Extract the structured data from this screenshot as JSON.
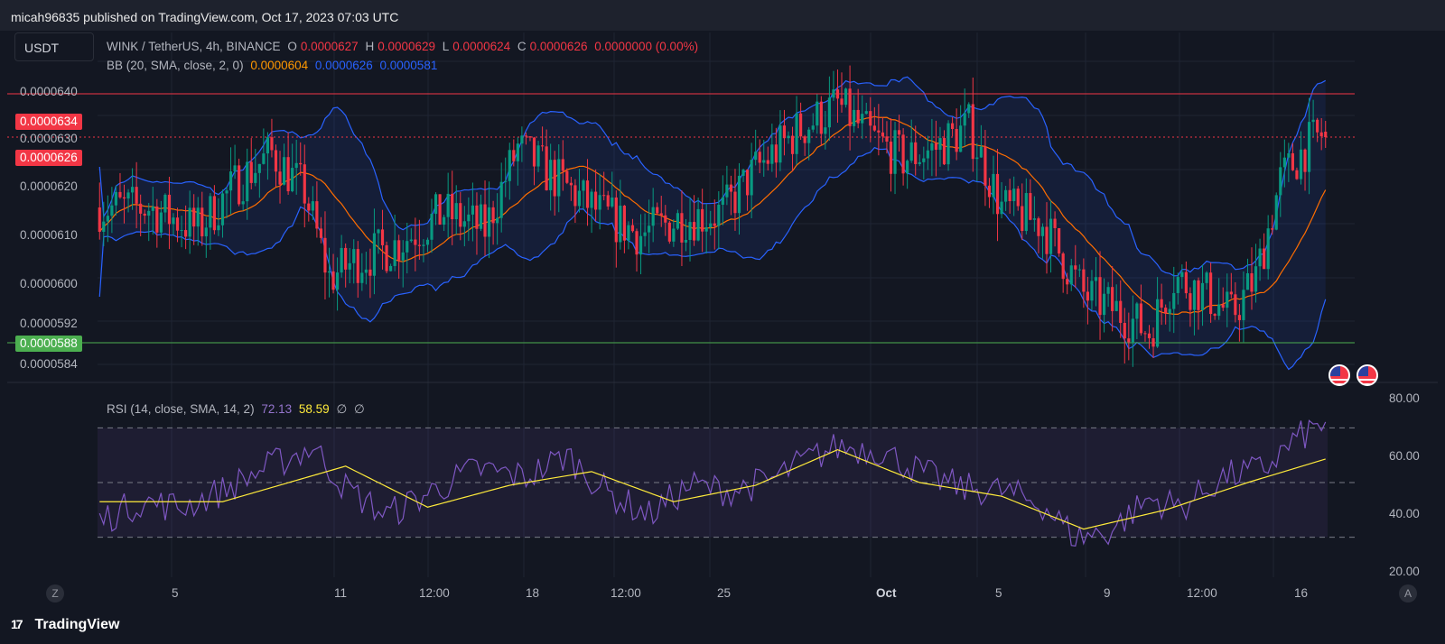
{
  "header": {
    "published": "micah96835 published on TradingView.com, Oct 17, 2023 07:03 UTC"
  },
  "symbol_box": {
    "label": "USDT"
  },
  "legend": {
    "pair": "WINK / TetherUS, 4h, BINANCE",
    "open_label": "O",
    "open": "0.0000627",
    "high_label": "H",
    "high": "0.0000629",
    "low_label": "L",
    "low": "0.0000624",
    "close_label": "C",
    "close": "0.0000626",
    "change": "0.0000000 (0.00%)",
    "bb_label": "BB (20, SMA, close, 2, 0)",
    "bb_basis": "0.0000604",
    "bb_upper": "0.0000626",
    "bb_lower": "0.0000581",
    "rsi_label": "RSI (14, close, SMA, 14, 2)",
    "rsi_value": "72.13",
    "rsi_ma": "58.59",
    "rsi_na1": "∅",
    "rsi_na2": "∅"
  },
  "price_axis": [
    "0.0000640",
    "0.0000630",
    "0.0000620",
    "0.0000610",
    "0.0000600",
    "0.0000592",
    "0.0000584"
  ],
  "price_tags": {
    "resistance": "0.0000634",
    "last": "0.0000626",
    "support": "0.0000588"
  },
  "rsi_axis": [
    "80.00",
    "60.00",
    "40.00",
    "20.00"
  ],
  "time_axis": [
    "5",
    "11",
    "12:00",
    "18",
    "12:00",
    "25",
    "Oct",
    "5",
    "9",
    "12:00",
    "16"
  ],
  "bottom": {
    "brand": "TradingView",
    "goto_label": "Z",
    "auto_label": "A"
  },
  "colors": {
    "background": "#131722",
    "up_candle": "#089981",
    "down_candle": "#f23645",
    "bb_basis": "#ff6d00",
    "bb_band": "#2962ff",
    "resistance_line": "#f23645",
    "support_line": "#4caf50",
    "rsi_line": "#7e57c2",
    "rsi_ma_line": "#ffeb3b"
  },
  "chart_data": {
    "type": "candlestick",
    "symbol": "WINK / TetherUS",
    "interval": "4h",
    "exchange": "BINANCE",
    "price_range": [
      5.8e-05,
      6.45e-05
    ],
    "horizontal_levels": [
      {
        "price": 6.34e-05,
        "color": "#f23645"
      },
      {
        "price": 5.88e-05,
        "color": "#4caf50"
      }
    ],
    "last_price": 6.26e-05,
    "price_path": [
      [
        0,
        6.13e-05
      ],
      [
        12,
        6.13e-05
      ],
      [
        24,
        6.09e-05
      ],
      [
        34,
        6.18e-05
      ],
      [
        42,
        6.23e-05
      ],
      [
        50,
        6.16e-05
      ],
      [
        56,
        6e-05
      ],
      [
        62,
        6.03e-05
      ],
      [
        72,
        6.06e-05
      ],
      [
        84,
        6.12e-05
      ],
      [
        94,
        6.09e-05
      ],
      [
        102,
        6.24e-05
      ],
      [
        110,
        6.19e-05
      ],
      [
        122,
        6.12e-05
      ],
      [
        132,
        6.08e-05
      ],
      [
        142,
        6.11e-05
      ],
      [
        152,
        6.12e-05
      ],
      [
        160,
        6.2e-05
      ],
      [
        170,
        6.27e-05
      ],
      [
        180,
        6.32e-05
      ],
      [
        188,
        6.26e-05
      ],
      [
        196,
        6.22e-05
      ],
      [
        204,
        6.24e-05
      ],
      [
        212,
        6.28e-05
      ],
      [
        220,
        6.13e-05
      ],
      [
        230,
        6.1e-05
      ],
      [
        240,
        5.97e-05
      ],
      [
        248,
        5.94e-05
      ],
      [
        256,
        5.9e-05
      ],
      [
        262,
        6e-05
      ],
      [
        270,
        5.97e-05
      ],
      [
        276,
        5.93e-05
      ],
      [
        282,
        6e-05
      ],
      [
        288,
        6.18e-05
      ],
      [
        294,
        6.24e-05
      ],
      [
        299,
        6.27e-05
      ]
    ],
    "x_range": [
      0,
      300
    ],
    "rsi": {
      "range": [
        20,
        80
      ],
      "upper_band": 70,
      "middle_band": 50,
      "lower_band": 30,
      "last_value": 72.13,
      "last_ma": 58.59,
      "path": [
        [
          0,
          36
        ],
        [
          10,
          43
        ],
        [
          20,
          41
        ],
        [
          30,
          47
        ],
        [
          40,
          55
        ],
        [
          52,
          63
        ],
        [
          60,
          48
        ],
        [
          70,
          38
        ],
        [
          80,
          46
        ],
        [
          92,
          55
        ],
        [
          104,
          52
        ],
        [
          114,
          60
        ],
        [
          124,
          46
        ],
        [
          134,
          38
        ],
        [
          144,
          49
        ],
        [
          154,
          47
        ],
        [
          164,
          51
        ],
        [
          172,
          58
        ],
        [
          180,
          63
        ],
        [
          190,
          62
        ],
        [
          200,
          54
        ],
        [
          210,
          48
        ],
        [
          220,
          47
        ],
        [
          230,
          42
        ],
        [
          238,
          30
        ],
        [
          246,
          32
        ],
        [
          256,
          44
        ],
        [
          264,
          41
        ],
        [
          274,
          52
        ],
        [
          284,
          55
        ],
        [
          292,
          66
        ],
        [
          299,
          72
        ]
      ],
      "ma_path": [
        [
          0,
          43
        ],
        [
          30,
          43
        ],
        [
          60,
          56
        ],
        [
          80,
          41
        ],
        [
          100,
          49
        ],
        [
          120,
          54
        ],
        [
          140,
          43
        ],
        [
          160,
          49
        ],
        [
          180,
          62
        ],
        [
          200,
          50
        ],
        [
          220,
          45
        ],
        [
          240,
          33
        ],
        [
          260,
          40
        ],
        [
          280,
          50
        ],
        [
          299,
          58.59
        ]
      ]
    }
  }
}
